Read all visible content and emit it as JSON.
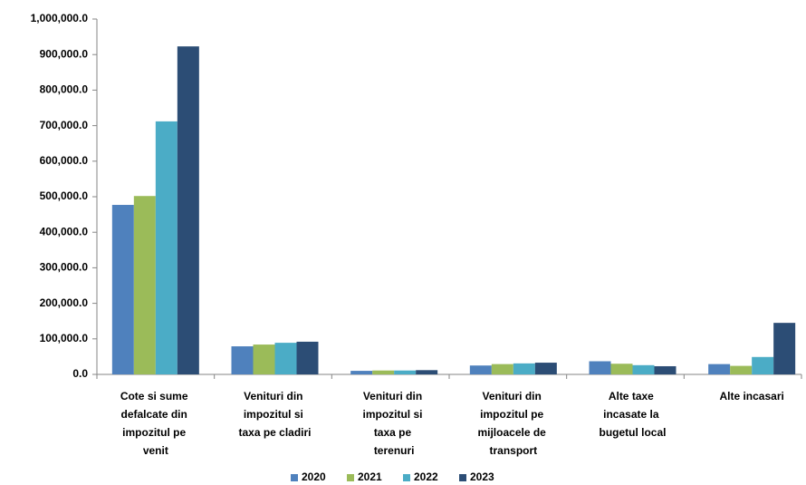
{
  "chart_data": {
    "type": "bar",
    "categories": [
      "Cote si sume defalcate din impozitul pe venit",
      "Venituri din impozitul si taxa pe cladiri",
      "Venituri din impozitul si taxa pe terenuri",
      "Venituri din impozitul pe mijloacele de transport",
      "Alte taxe incasate la bugetul local",
      "Alte incasari"
    ],
    "series": [
      {
        "name": "2020",
        "color": "#4f81bd",
        "values": [
          477000,
          79000,
          10000,
          25000,
          37000,
          29000
        ]
      },
      {
        "name": "2021",
        "color": "#9bbb59",
        "values": [
          502000,
          84000,
          11000,
          29000,
          30000,
          24000
        ]
      },
      {
        "name": "2022",
        "color": "#4bacc6",
        "values": [
          712000,
          89000,
          11000,
          31000,
          26000,
          49000
        ]
      },
      {
        "name": "2023",
        "color": "#2c4d75",
        "values": [
          923000,
          92000,
          12000,
          33000,
          23000,
          145000
        ]
      }
    ],
    "ylim": [
      0,
      1000000
    ],
    "yticks": [
      {
        "value": 0,
        "label": "0.0"
      },
      {
        "value": 100000,
        "label": "100,000.0"
      },
      {
        "value": 200000,
        "label": "200,000.0"
      },
      {
        "value": 300000,
        "label": "300,000.0"
      },
      {
        "value": 400000,
        "label": "400,000.0"
      },
      {
        "value": 500000,
        "label": "500,000.0"
      },
      {
        "value": 600000,
        "label": "600,000.0"
      },
      {
        "value": 700000,
        "label": "700,000.0"
      },
      {
        "value": 800000,
        "label": "800,000.0"
      },
      {
        "value": 900000,
        "label": "900,000.0"
      },
      {
        "value": 1000000,
        "label": "1,000,000.0"
      }
    ],
    "grid": false,
    "legend": "bottom"
  }
}
